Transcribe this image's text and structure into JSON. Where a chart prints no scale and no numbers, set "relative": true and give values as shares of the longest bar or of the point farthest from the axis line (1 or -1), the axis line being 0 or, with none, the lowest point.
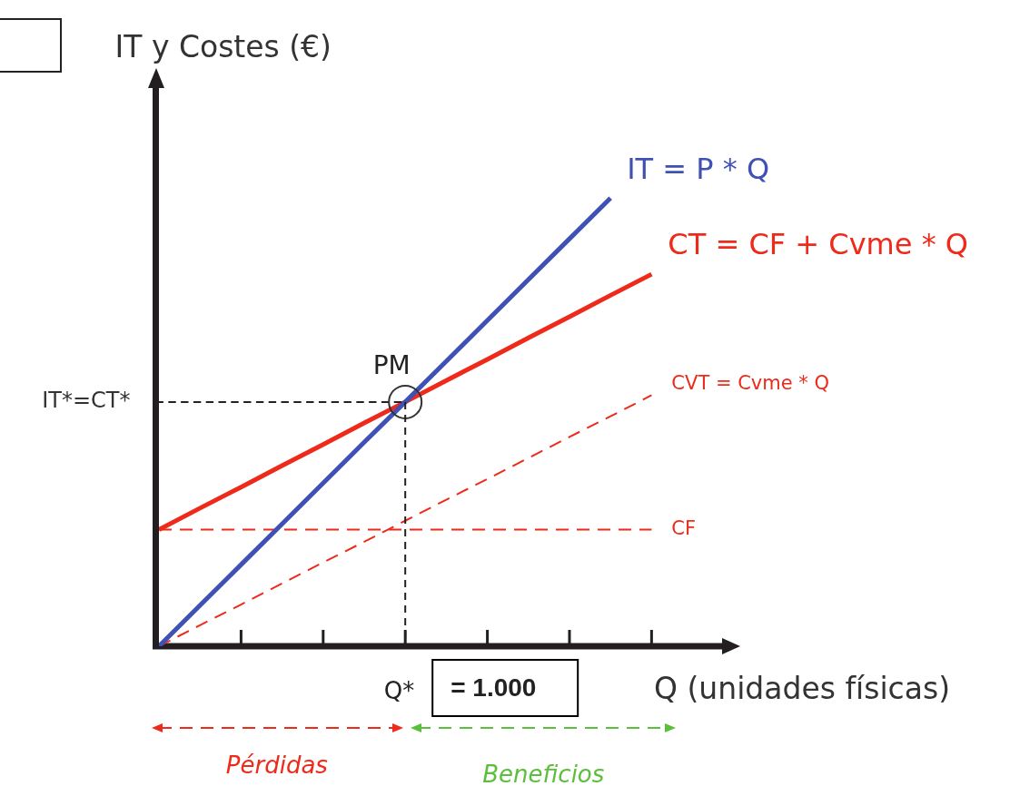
{
  "chart_data": {
    "type": "line",
    "relative": true,
    "xlabel": "Q (unidades físicas)",
    "ylabel": "IT y Costes (€)",
    "categories": [
      null,
      null,
      null,
      null,
      null,
      null,
      null,
      null,
      null,
      null,
      null,
      null,
      null
    ],
    "series": [
      {
        "name": "IT = P * Q",
        "color": "#3f51b5",
        "values": [
          0,
          0.091,
          0.182,
          0.273,
          0.364,
          0.455,
          0.545,
          0.636,
          0.727,
          0.818,
          0.909,
          1,
          null
        ]
      },
      {
        "name": "CT = CF + Cvme * Q",
        "color": "#ee2a1b",
        "values": [
          0.26,
          0.308,
          0.355,
          0.403,
          0.45,
          0.498,
          0.545,
          0.593,
          0.64,
          0.688,
          0.735,
          0.783,
          0.83
        ]
      },
      {
        "name": "CVT = Cvme * Q",
        "color": "#ee2a1b",
        "values": [
          0,
          0.047,
          0.093,
          0.14,
          0.187,
          0.233,
          0.28,
          0.327,
          0.373,
          0.42,
          0.467,
          0.513,
          0.56
        ],
        "line_style": "dashed"
      },
      {
        "name": "CF",
        "color": "#ee2a1b",
        "values": [
          0.26,
          0.26,
          0.26,
          0.26,
          0.26,
          0.26,
          0.26,
          0.26,
          0.26,
          0.26,
          0.26,
          0.26,
          0.26
        ],
        "line_style": "dashed"
      }
    ],
    "ref_lines": [
      {
        "axis": "y",
        "value": 0.545,
        "label": "IT*=CT*",
        "line_style": "dashed"
      }
    ],
    "annotations": [
      "PM",
      "Q*",
      "= 1.000",
      "Pérdidas",
      "Beneficios"
    ],
    "marker": "none",
    "legend": false
  }
}
